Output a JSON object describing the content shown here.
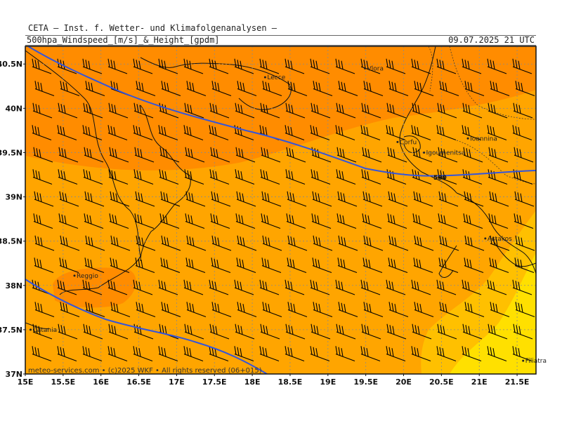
{
  "header": {
    "title": "CETA — Inst. f. Wetter- und Klimafolgenanalysen —",
    "product": "500hpa_Windspeed_[m/s]_&_Height_[gpdm]",
    "valid_time": "09.07.2025 21 UTC"
  },
  "map": {
    "lon_range": [
      15,
      21.75
    ],
    "lat_range": [
      37,
      40.7
    ],
    "lat_labels": [
      "40.5N",
      "40N",
      "39.5N",
      "39N",
      "38.5N",
      "38N",
      "37.5N",
      "37N"
    ],
    "lat_values": [
      40.5,
      40,
      39.5,
      39,
      38.5,
      38,
      37.5,
      37
    ],
    "lon_labels": [
      "15E",
      "15.5E",
      "16E",
      "16.5E",
      "17E",
      "17.5E",
      "18E",
      "18.5E",
      "19E",
      "19.5E",
      "20E",
      "20.5E",
      "21E",
      "21.5E"
    ],
    "lon_values": [
      15,
      15.5,
      16,
      16.5,
      17,
      17.5,
      18,
      18.5,
      19,
      19.5,
      20,
      20.5,
      21,
      21.5
    ],
    "contour_label": "580",
    "cities": [
      {
        "name": "Lecce",
        "lon": 18.17,
        "lat": 40.35
      },
      {
        "name": "Vlora",
        "lon": 19.49,
        "lat": 40.45
      },
      {
        "name": "Corfu",
        "lon": 19.92,
        "lat": 39.62
      },
      {
        "name": "Ioannina",
        "lon": 20.85,
        "lat": 39.66
      },
      {
        "name": "Igoumenitsa",
        "lon": 20.27,
        "lat": 39.5
      },
      {
        "name": "Astakos",
        "lon": 21.08,
        "lat": 38.53
      },
      {
        "name": "Reggio",
        "lon": 15.65,
        "lat": 38.11
      },
      {
        "name": "Catania",
        "lon": 15.07,
        "lat": 37.5
      },
      {
        "name": "Filiatra",
        "lon": 21.58,
        "lat": 37.15
      }
    ],
    "colors": {
      "orange_dark": "#ff8c00",
      "orange": "#ffa500",
      "amber": "#ffc000",
      "yellow": "#ffe000",
      "contour": "#3355dd",
      "barb": "#000000"
    }
  },
  "footer": {
    "copyright": "meteo-services.com • (c)2025 WKF • All rights reserved (06+015)"
  }
}
